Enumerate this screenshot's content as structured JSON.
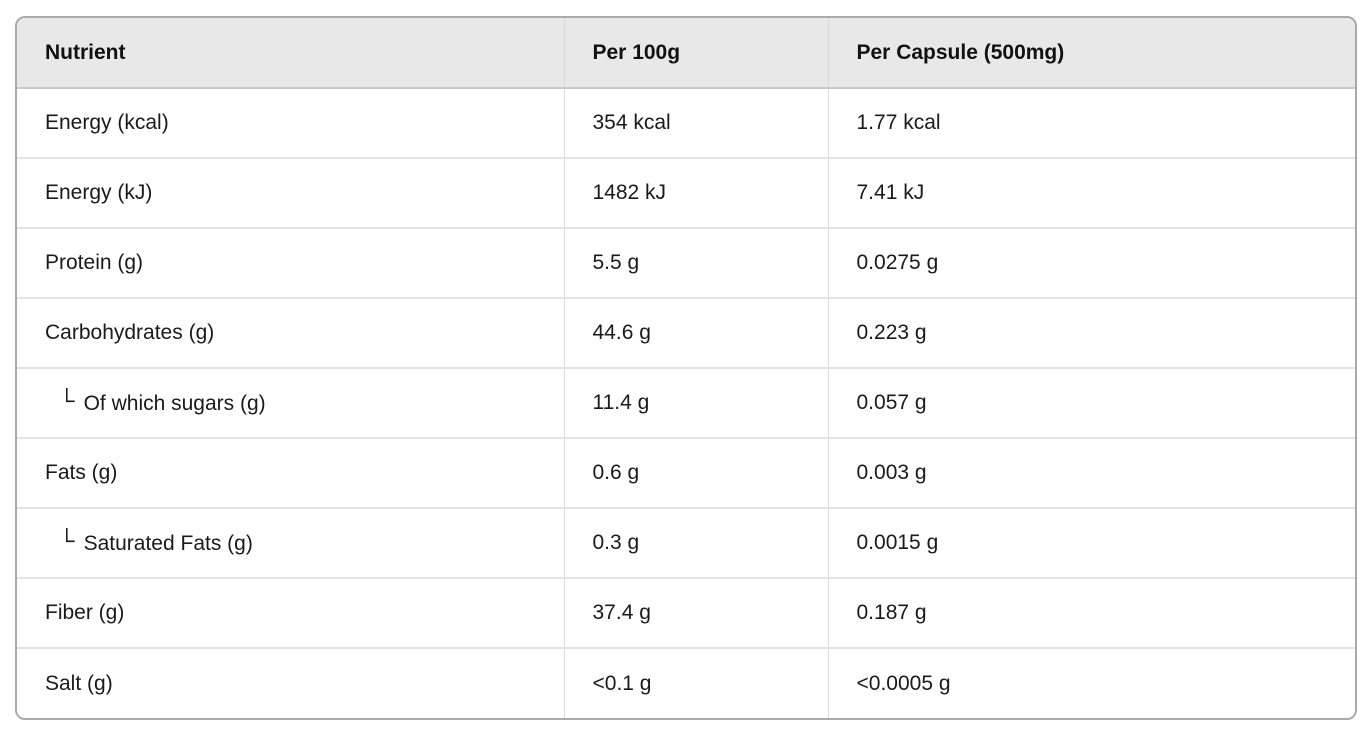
{
  "table": {
    "columns": [
      {
        "label": "Nutrient"
      },
      {
        "label": "Per 100g"
      },
      {
        "label": "Per Capsule (500mg)"
      }
    ],
    "tree_glyph": "└",
    "rows": [
      {
        "nutrient": "Energy (kcal)",
        "per_100g": "354 kcal",
        "per_capsule": "1.77 kcal",
        "indent": false
      },
      {
        "nutrient": "Energy (kJ)",
        "per_100g": "1482 kJ",
        "per_capsule": "7.41 kJ",
        "indent": false
      },
      {
        "nutrient": "Protein (g)",
        "per_100g": "5.5 g",
        "per_capsule": "0.0275 g",
        "indent": false
      },
      {
        "nutrient": "Carbohydrates (g)",
        "per_100g": "44.6 g",
        "per_capsule": "0.223 g",
        "indent": false
      },
      {
        "nutrient": "Of which sugars (g)",
        "per_100g": "11.4 g",
        "per_capsule": "0.057 g",
        "indent": true
      },
      {
        "nutrient": "Fats (g)",
        "per_100g": "0.6 g",
        "per_capsule": "0.003 g",
        "indent": false
      },
      {
        "nutrient": "Saturated Fats (g)",
        "per_100g": "0.3 g",
        "per_capsule": "0.0015 g",
        "indent": true
      },
      {
        "nutrient": "Fiber (g)",
        "per_100g": "37.4 g",
        "per_capsule": "0.187 g",
        "indent": false
      },
      {
        "nutrient": "Salt (g)",
        "per_100g": "<0.1 g",
        "per_capsule": "<0.0005 g",
        "indent": false
      }
    ]
  },
  "chart_data": {
    "type": "table",
    "title": "",
    "columns": [
      "Nutrient",
      "Per 100g",
      "Per Capsule (500mg)"
    ],
    "rows": [
      [
        "Energy (kcal)",
        "354 kcal",
        "1.77 kcal"
      ],
      [
        "Energy (kJ)",
        "1482 kJ",
        "7.41 kJ"
      ],
      [
        "Protein (g)",
        "5.5 g",
        "0.0275 g"
      ],
      [
        "└ Of which sugars (g)",
        "11.4 g",
        "0.057 g"
      ],
      [
        "Carbohydrates (g)",
        "44.6 g",
        "0.223 g"
      ],
      [
        "Fats (g)",
        "0.6 g",
        "0.003 g"
      ],
      [
        "└ Saturated Fats (g)",
        "0.3 g",
        "0.0015 g"
      ],
      [
        "Fiber (g)",
        "37.4 g",
        "0.187 g"
      ],
      [
        "Salt (g)",
        "<0.1 g",
        "<0.0005 g"
      ]
    ]
  },
  "colors": {
    "header_background": "#e8e8e8",
    "outer_border": "#a9a9a9",
    "row_divider": "#e3e3e3",
    "column_divider": "#d9d9d9",
    "header_divider": "#c9c9c9",
    "text": "#1a1a1a",
    "page_background": "#ffffff"
  }
}
